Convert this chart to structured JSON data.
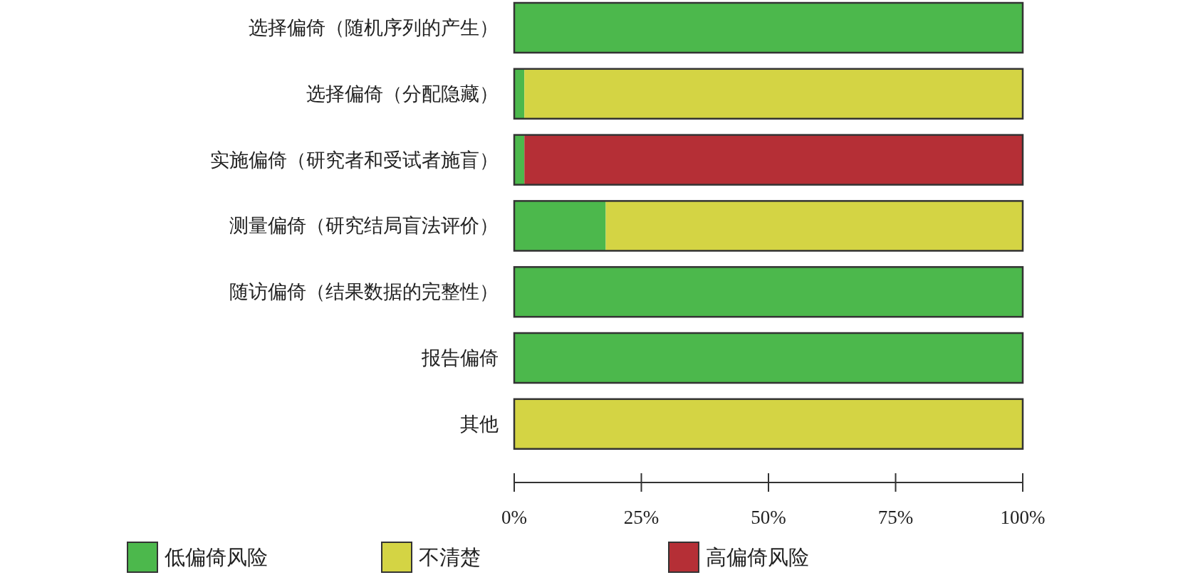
{
  "chart_data": {
    "type": "bar",
    "orientation": "horizontal",
    "stacked": true,
    "legend": "bottom",
    "categories": [
      "选择偏倚（随机序列的产生）",
      "选择偏倚（分配隐藏）",
      "实施偏倚（研究者和受试者施盲）",
      "测量偏倚（研究结局盲法评价）",
      "随访偏倚（结果数据的完整性）",
      "报告偏倚",
      "其他"
    ],
    "series": [
      {
        "name": "低偏倚风险",
        "color": "#4cb84c",
        "values": [
          100,
          2,
          2,
          18,
          100,
          100,
          0
        ]
      },
      {
        "name": "不清楚",
        "color": "#d4d444",
        "values": [
          0,
          98,
          0,
          82,
          0,
          0,
          100
        ]
      },
      {
        "name": "高偏倚风险",
        "color": "#b52f36",
        "values": [
          0,
          0,
          98,
          0,
          0,
          0,
          0
        ]
      }
    ],
    "xlim": [
      0,
      100
    ],
    "xticks": [
      {
        "value": 0,
        "label": "0%"
      },
      {
        "value": 25,
        "label": "25%"
      },
      {
        "value": 50,
        "label": "50%"
      },
      {
        "value": 75,
        "label": "75%"
      },
      {
        "value": 100,
        "label": "100%"
      }
    ]
  }
}
